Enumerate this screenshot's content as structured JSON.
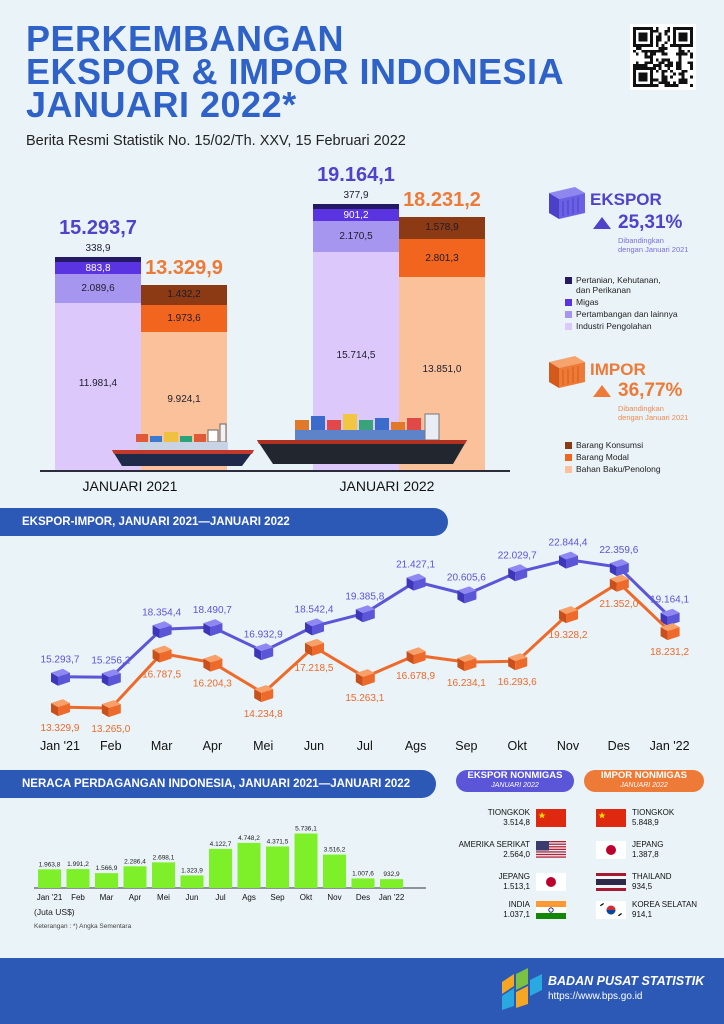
{
  "header": {
    "title_lines": [
      "PERKEMBANGAN",
      "EKSPOR & IMPOR INDONESIA",
      "JANUARI 2022*"
    ],
    "subtitle": "Berita Resmi Statistik No. 15/02/Th. XXV, 15 Februari 2022"
  },
  "colors": {
    "primary_blue": "#2f62c8",
    "export": "#5b55d8",
    "import": "#ee7a37",
    "bar_green": "#7ef02a",
    "banner": "#2d59b6"
  },
  "chart_data": [
    {
      "type": "bar",
      "stacked": true,
      "categories": [
        "JANUARI 2021",
        "JANUARI 2022"
      ],
      "export": {
        "totals": [
          "15.293,7",
          "19.164,1"
        ],
        "series": [
          {
            "name": "Pertanian, Kehutanan, dan Perikanan",
            "labels": [
              "338,9",
              "377,9"
            ],
            "values": [
              338.9,
              377.9
            ],
            "color": "#241a63"
          },
          {
            "name": "Migas",
            "labels": [
              "883,8",
              "901,2"
            ],
            "values": [
              883.8,
              901.2
            ],
            "color": "#5a34e0"
          },
          {
            "name": "Pertambangan dan lainnya",
            "labels": [
              "2.089,6",
              "2.170,5"
            ],
            "values": [
              2089.6,
              2170.5
            ],
            "color": "#a796ef"
          },
          {
            "name": "Industri Pengolahan",
            "labels": [
              "11.981,4",
              "15.714,5"
            ],
            "values": [
              11981.4,
              15714.5
            ],
            "color": "#dcc8fa"
          }
        ]
      },
      "import": {
        "totals": [
          "13.329,9",
          "18.231,2"
        ],
        "series": [
          {
            "name": "Barang Konsumsi",
            "labels": [
              "1.432,2",
              "1.578,9"
            ],
            "values": [
              1432.2,
              1578.9
            ],
            "color": "#8b3a14"
          },
          {
            "name": "Barang Modal",
            "labels": [
              "1.973,6",
              "2.801,3"
            ],
            "values": [
              1973.6,
              2801.3
            ],
            "color": "#f2651e"
          },
          {
            "name": "Bahan Baku/Penolong",
            "labels": [
              "9.924,1",
              "13.851,0"
            ],
            "values": [
              9924.1,
              13851.0
            ],
            "color": "#fbc19a"
          }
        ]
      }
    },
    {
      "type": "line",
      "title": "EKSPOR-IMPOR, JANUARI 2021—JANUARI 2022",
      "categories": [
        "Jan '21",
        "Feb",
        "Mar",
        "Apr",
        "Mei",
        "Jun",
        "Jul",
        "Ags",
        "Sep",
        "Okt",
        "Nov",
        "Des",
        "Jan '22"
      ],
      "series": [
        {
          "labels": [
            "15.293,7",
            "15.256,2",
            "18.354,4",
            "18.490,7",
            "16.932,9",
            "18.542,4",
            "19.385,8",
            "21.427,1",
            "20.605,6",
            "22.029,7",
            "22.844,4",
            "22.359,6",
            "19.164,1"
          ],
          "values": [
            15293.7,
            15256.2,
            18354.4,
            18490.7,
            16932.9,
            18542.4,
            19385.8,
            21427.1,
            20605.6,
            22029.7,
            22844.4,
            22359.6,
            19164.1
          ],
          "color": "#5b55d8"
        },
        {
          "labels": [
            "13.329,9",
            "13.265,0",
            "16.787,5",
            "16.204,3",
            "14.234,8",
            "17.218,5",
            "15.263,1",
            "16.678,9",
            "16.234,1",
            "16.293,6",
            "19.328,2",
            "21.352,0",
            "18.231,2"
          ],
          "values": [
            13329.9,
            13265.0,
            16787.5,
            16204.3,
            14234.8,
            17218.5,
            15263.1,
            16678.9,
            16234.1,
            16293.6,
            19328.2,
            21352.0,
            18231.2
          ],
          "color": "#ee6a2a"
        }
      ]
    },
    {
      "type": "bar",
      "title": "NERACA PERDAGANGAN INDONESIA, JANUARI 2021—JANUARI 2022",
      "unit": "(Juta US$)",
      "categories": [
        "Jan '21",
        "Feb",
        "Mar",
        "Apr",
        "Mei",
        "Jun",
        "Jul",
        "Ags",
        "Sep",
        "Okt",
        "Nov",
        "Des",
        "Jan '22"
      ],
      "labels": [
        "1.963,8",
        "1.991,2",
        "1.566,9",
        "2.286,4",
        "2.698,1",
        "1.323,9",
        "4.122,7",
        "4.748,2",
        "4.371,5",
        "5.736,1",
        "3.516,2",
        "1.007,6",
        "932,9"
      ],
      "values": [
        1963.8,
        1991.2,
        1566.9,
        2286.4,
        2698.1,
        1323.9,
        4122.7,
        4748.2,
        4371.5,
        5736.1,
        3516.2,
        1007.6,
        932.9
      ],
      "note": "Keterangan :   *) Angka Sementara"
    }
  ],
  "ekspor_box": {
    "title": "EKSPOR",
    "growth": "25,31%",
    "compare": [
      "Dibandingkan",
      "dengan Januari 2021"
    ]
  },
  "impor_box": {
    "title": "IMPOR",
    "growth": "36,77%",
    "compare": [
      "Dibandingkan",
      "dengan Januari 2021"
    ]
  },
  "legend_export": [
    "Pertanian, Kehutanan,",
    "dan Perikanan",
    "Migas",
    "Pertambangan dan lainnya",
    "Industri Pengolahan"
  ],
  "legend_import": [
    "Barang Konsumsi",
    "Barang Modal",
    "Bahan Baku/Penolong"
  ],
  "nonmigas": {
    "export_title": "EKSPOR NONMIGAS",
    "export_sub": "JANUARI 2022",
    "import_title": "IMPOR NONMIGAS",
    "import_sub": "JANUARI 2022",
    "export": [
      {
        "country": "TIONGKOK",
        "value": "3.514,8",
        "flag": "china-flag-icon"
      },
      {
        "country": "AMERIKA SERIKAT",
        "value": "2.564,0",
        "flag": "usa-flag-icon"
      },
      {
        "country": "JEPANG",
        "value": "1.513,1",
        "flag": "japan-flag-icon"
      },
      {
        "country": "INDIA",
        "value": "1.037,1",
        "flag": "india-flag-icon"
      }
    ],
    "import": [
      {
        "country": "TIONGKOK",
        "value": "5.848,9",
        "flag": "china-flag-icon"
      },
      {
        "country": "JEPANG",
        "value": "1.387,8",
        "flag": "japan-flag-icon"
      },
      {
        "country": "THAILAND",
        "value": "934,5",
        "flag": "thailand-flag-icon"
      },
      {
        "country": "KOREA SELATAN",
        "value": "914,1",
        "flag": "korea-flag-icon"
      }
    ]
  },
  "footer": {
    "org": "BADAN PUSAT STATISTIK",
    "url": "https://www.bps.go.id"
  }
}
